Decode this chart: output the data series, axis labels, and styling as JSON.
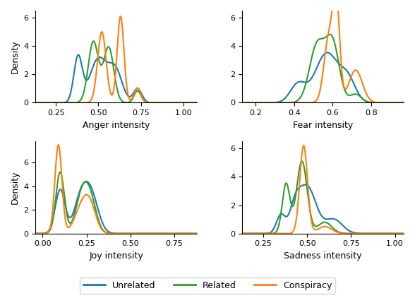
{
  "colors": {
    "Unrelated": "#1f77b4",
    "Related": "#2ca02c",
    "Conspiracy": "#ff7f0e"
  },
  "legend_labels": [
    "Unrelated",
    "Related",
    "Conspiracy"
  ],
  "subplots": [
    {
      "xlabel": "Anger intensity",
      "xlim": [
        0.13,
        1.08
      ],
      "ylim": [
        0,
        6.5
      ],
      "xticks": [
        0.25,
        0.5,
        0.75,
        1.0
      ],
      "ylabel": "Density"
    },
    {
      "xlabel": "Fear intensity",
      "xlim": [
        0.13,
        0.97
      ],
      "ylim": [
        0,
        6.5
      ],
      "xticks": [
        0.2,
        0.4,
        0.6,
        0.8
      ],
      "ylabel": ""
    },
    {
      "xlabel": "Joy intensity",
      "xlim": [
        -0.04,
        0.88
      ],
      "ylim": [
        0,
        7.8
      ],
      "xticks": [
        0.0,
        0.25,
        0.5,
        0.75
      ],
      "ylabel": "Density"
    },
    {
      "xlabel": "Sadness intensity",
      "xlim": [
        0.13,
        1.05
      ],
      "ylim": [
        0,
        6.5
      ],
      "xticks": [
        0.25,
        0.5,
        0.75,
        1.0
      ],
      "ylabel": ""
    }
  ]
}
